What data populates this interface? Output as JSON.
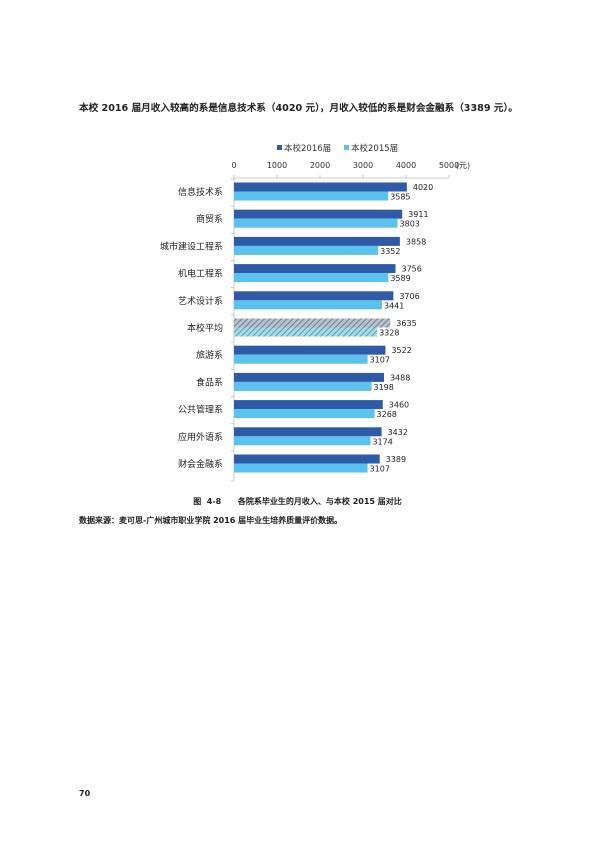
{
  "page": {
    "intro": "本校 2016 届月收入较高的系是信息技术系（4020 元），月收入较低的系是财会金融系（3389 元）。",
    "caption": "图  4-8      各院系毕业生的月收入、与本校 2015 届对比",
    "source": "数据来源：麦可思-广州城市职业学院 2016 届毕业生培养质量评价数据。",
    "page_number": "70"
  },
  "colors": {
    "series_2016": "#2e5aa8",
    "series_2015": "#5bc2ee",
    "avg_2016_stripe": "#8a97a8",
    "avg_2015_stripe": "#6fb8c8"
  },
  "chart_data": {
    "type": "bar",
    "orientation": "horizontal",
    "unit_label": "(元)",
    "xlim": [
      0,
      5000
    ],
    "xticks": [
      0,
      1000,
      2000,
      3000,
      4000,
      5000
    ],
    "legend_position": "top",
    "categories": [
      "信息技术系",
      "商贸系",
      "城市建设工程系",
      "机电工程系",
      "艺术设计系",
      "本校平均",
      "旅游系",
      "食品系",
      "公共管理系",
      "应用外语系",
      "财会金融系"
    ],
    "series": [
      {
        "name": "本校2016届",
        "values": [
          4020,
          3911,
          3858,
          3756,
          3706,
          3635,
          3522,
          3488,
          3460,
          3432,
          3389
        ]
      },
      {
        "name": "本校2015届",
        "values": [
          3585,
          3803,
          3352,
          3589,
          3441,
          3328,
          3107,
          3198,
          3268,
          3174,
          3107
        ]
      }
    ],
    "highlight_category": "本校平均"
  }
}
